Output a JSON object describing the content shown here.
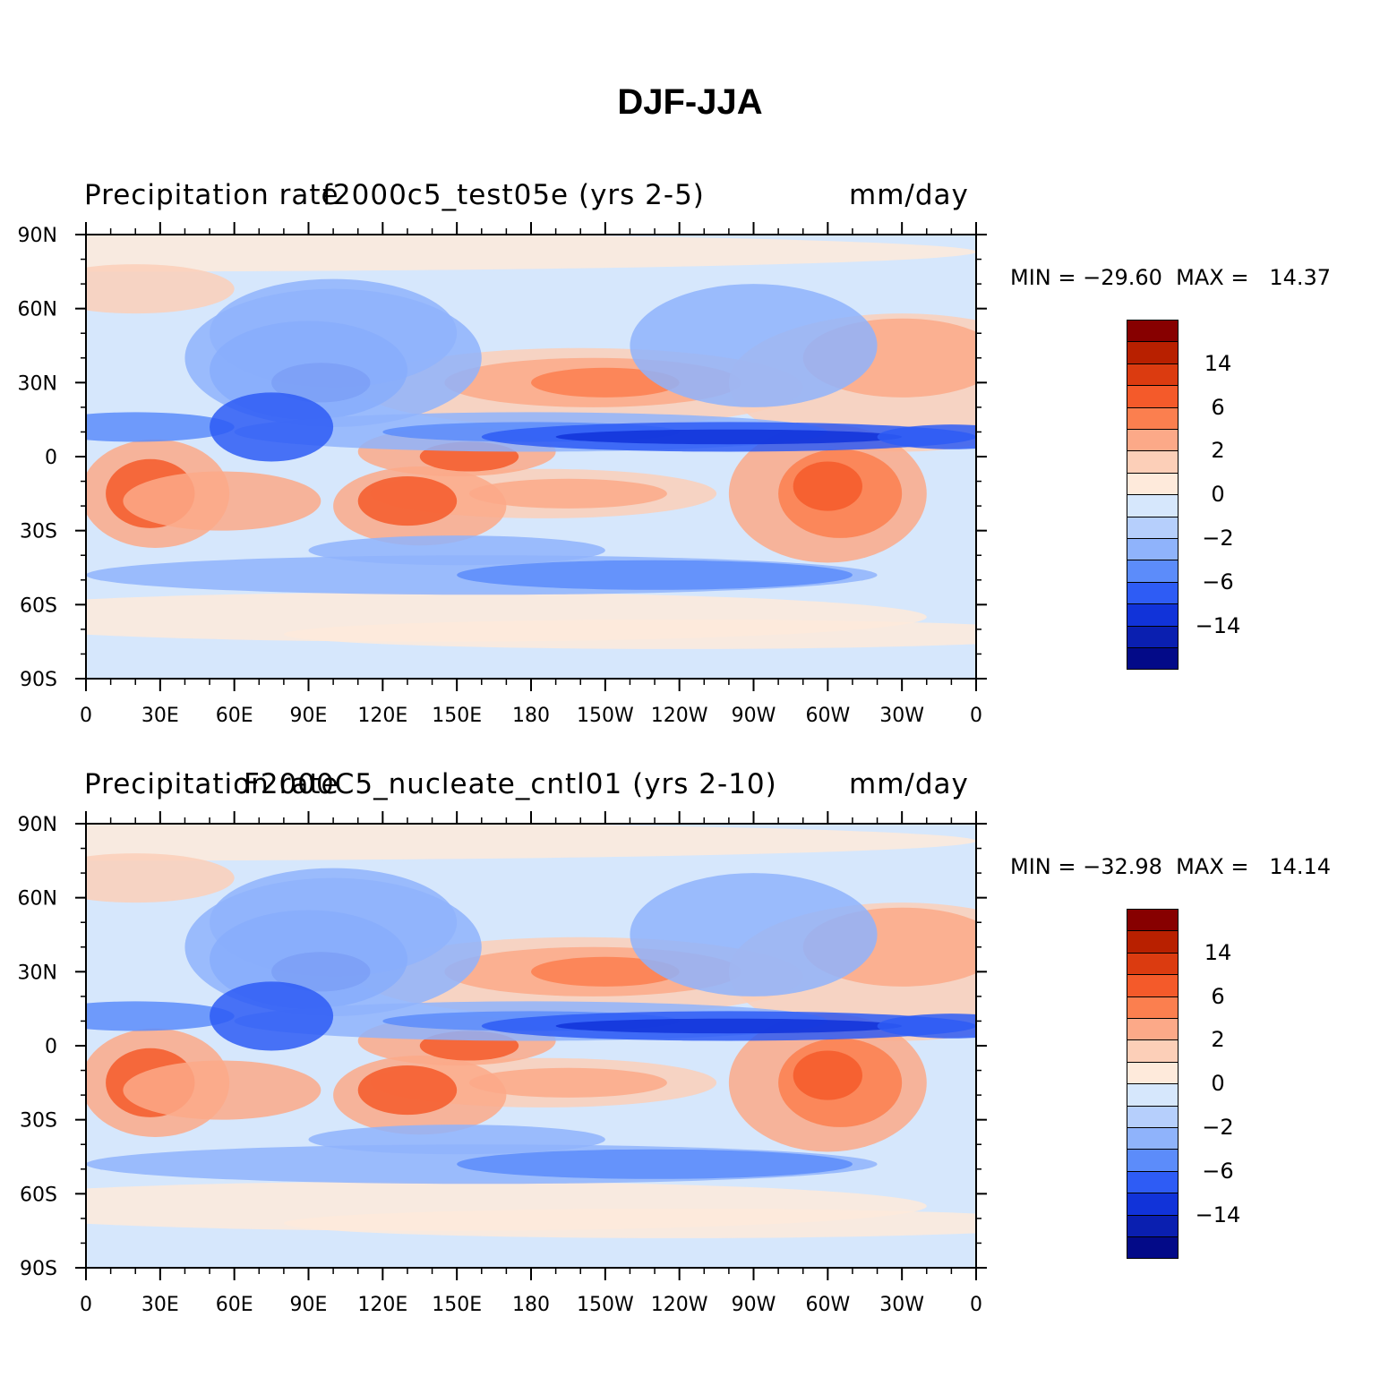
{
  "title": "DJF-JJA",
  "panels": [
    {
      "left_title": "Precipitation rate",
      "center_title": "f2000c5_test05e (yrs 2-5)",
      "right_title": "mm/day",
      "stats": "MIN = −29.60  MAX =   14.37"
    },
    {
      "left_title": "Precipitation rate",
      "center_title": "F2000C5_nucleate_cntl01 (yrs 2-10)",
      "right_title": "mm/day",
      "stats": "MIN = −32.98  MAX =   14.14"
    }
  ],
  "lat_ticks": [
    "90N",
    "60N",
    "30N",
    "0",
    "30S",
    "60S",
    "90S"
  ],
  "lon_ticks": [
    "0",
    "30E",
    "60E",
    "90E",
    "120E",
    "150E",
    "180",
    "150W",
    "120W",
    "90W",
    "60W",
    "30W",
    "0"
  ],
  "colorbar": {
    "colors": [
      "#870000",
      "#b82000",
      "#db3b10",
      "#f45a2a",
      "#fb7f4f",
      "#fca988",
      "#fccfb8",
      "#feeadb",
      "#d6e7fc",
      "#b6cffc",
      "#8fb3fb",
      "#5c8cfa",
      "#2e5cf5",
      "#1133d9",
      "#0a1fb0",
      "#030a88"
    ],
    "labels": [
      "14",
      "6",
      "2",
      "0",
      "−2",
      "−6",
      "−14"
    ]
  }
}
